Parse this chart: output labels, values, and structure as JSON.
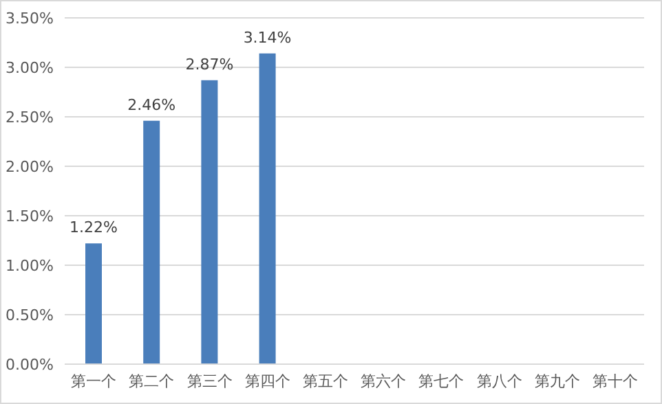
{
  "chart_data": {
    "type": "bar",
    "categories": [
      "第一个",
      "第二个",
      "第三个",
      "第四个",
      "第五个",
      "第六个",
      "第七个",
      "第八个",
      "第九个",
      "第十个"
    ],
    "values": [
      1.22,
      2.46,
      2.87,
      3.14,
      null,
      null,
      null,
      null,
      null,
      null
    ],
    "value_labels": [
      "1.22%",
      "2.46%",
      "2.87%",
      "3.14%",
      null,
      null,
      null,
      null,
      null,
      null
    ],
    "color": "#4a7ebb",
    "ylim": [
      0,
      3.5
    ],
    "yticks": [
      {
        "value": 0,
        "label": "0.00%"
      },
      {
        "value": 0.5,
        "label": "0.50%"
      },
      {
        "value": 1,
        "label": "1.00%"
      },
      {
        "value": 1.5,
        "label": "1.50%"
      },
      {
        "value": 2,
        "label": "2.00%"
      },
      {
        "value": 2.5,
        "label": "2.50%"
      },
      {
        "value": 3,
        "label": "3.00%"
      },
      {
        "value": 3.5,
        "label": "3.50%"
      }
    ],
    "grid": "y"
  }
}
